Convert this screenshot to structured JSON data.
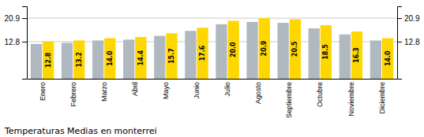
{
  "chart_data": {
    "type": "bar",
    "title": "Temperaturas Medias en monterrei",
    "categories": [
      "Enero",
      "Febrero",
      "Marzo",
      "Abril",
      "Mayo",
      "Junio",
      "Julio",
      "Agosto",
      "Septiembre",
      "Octubre",
      "Noviembre",
      "Diciembre"
    ],
    "series": [
      {
        "color": "#B0B8C0",
        "values": [
          12.0,
          12.4,
          13.2,
          13.5,
          14.8,
          16.5,
          18.8,
          19.6,
          19.3,
          17.4,
          15.3,
          13.2
        ]
      },
      {
        "color": "#FFD700",
        "values": [
          12.8,
          13.2,
          14.0,
          14.4,
          15.7,
          17.6,
          20.0,
          20.9,
          20.5,
          18.5,
          16.3,
          14.0
        ],
        "data_labels": true,
        "value_labels": [
          "12.8",
          "13.2",
          "14.0",
          "14.4",
          "15.7",
          "17.6",
          "20.0",
          "20.9",
          "20.5",
          "18.5",
          "16.3",
          "14.0"
        ]
      }
    ],
    "ylim": [
      0.0,
      25.0
    ],
    "yticks": [
      12.8,
      20.9
    ],
    "y2lim": [
      0.0,
      25.0
    ],
    "y2ticks": [
      12.8,
      20.9
    ],
    "grid": true
  }
}
